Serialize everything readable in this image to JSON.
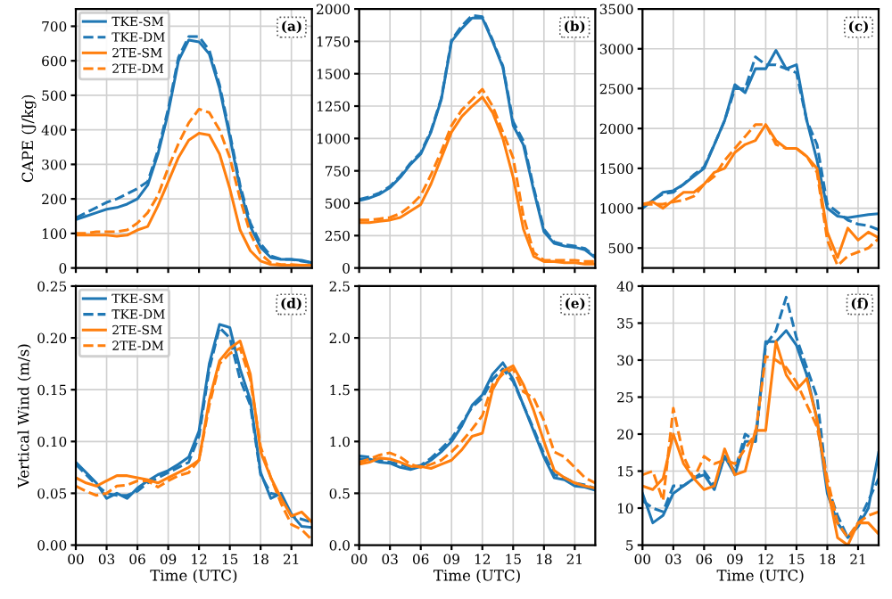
{
  "chart_data": [
    {
      "type": "line",
      "ylabel": "CAPE (J/kg)",
      "annotations": [
        "(a)"
      ],
      "x": [
        0,
        1,
        2,
        3,
        4,
        5,
        6,
        7,
        8,
        9,
        10,
        11,
        12,
        13,
        14,
        15,
        16,
        17,
        18,
        19,
        20,
        21,
        22,
        23
      ],
      "xlim": [
        0,
        23
      ],
      "xticks": [
        {
          "value": 0,
          "label": null
        },
        {
          "value": 3,
          "label": null
        },
        {
          "value": 6,
          "label": null
        },
        {
          "value": 9,
          "label": null
        },
        {
          "value": 12,
          "label": null
        },
        {
          "value": 15,
          "label": null
        },
        {
          "value": 18,
          "label": null
        },
        {
          "value": 21,
          "label": null
        }
      ],
      "ylim": [
        0,
        750
      ],
      "yticks": [
        0,
        100,
        200,
        300,
        400,
        500,
        600,
        700
      ],
      "tick_labels": "y",
      "grid": true,
      "legend": "top left",
      "series": [
        {
          "name": "TKE-SM",
          "color": "#1f77b4",
          "line_style": "solid",
          "values": [
            140,
            150,
            160,
            170,
            175,
            185,
            200,
            240,
            330,
            450,
            600,
            660,
            655,
            620,
            520,
            380,
            230,
            120,
            60,
            30,
            25,
            25,
            22,
            15
          ]
        },
        {
          "name": "TKE-DM",
          "color": "#1f77b4",
          "line_style": "dashed",
          "values": [
            145,
            160,
            175,
            190,
            200,
            215,
            230,
            250,
            340,
            460,
            610,
            670,
            670,
            630,
            530,
            390,
            240,
            130,
            70,
            35,
            25,
            25,
            20,
            15
          ]
        },
        {
          "name": "2TE-SM",
          "color": "#ff7f0e",
          "line_style": "solid",
          "values": [
            95,
            95,
            95,
            95,
            92,
            95,
            110,
            120,
            180,
            250,
            320,
            370,
            390,
            385,
            330,
            230,
            110,
            50,
            20,
            10,
            8,
            8,
            8,
            8
          ]
        },
        {
          "name": "2TE-DM",
          "color": "#ff7f0e",
          "line_style": "dashed",
          "values": [
            100,
            100,
            105,
            105,
            105,
            110,
            130,
            160,
            210,
            290,
            360,
            420,
            460,
            450,
            400,
            320,
            200,
            100,
            40,
            15,
            10,
            10,
            8,
            8
          ]
        }
      ]
    },
    {
      "type": "line",
      "annotations": [
        "(b)"
      ],
      "x": [
        0,
        1,
        2,
        3,
        4,
        5,
        6,
        7,
        8,
        9,
        10,
        11,
        12,
        13,
        14,
        15,
        16,
        17,
        18,
        19,
        20,
        21,
        22,
        23
      ],
      "xlim": [
        0,
        23
      ],
      "xticks": [
        {
          "value": 0,
          "label": null
        },
        {
          "value": 3,
          "label": null
        },
        {
          "value": 6,
          "label": null
        },
        {
          "value": 9,
          "label": null
        },
        {
          "value": 12,
          "label": null
        },
        {
          "value": 15,
          "label": null
        },
        {
          "value": 18,
          "label": null
        },
        {
          "value": 21,
          "label": null
        }
      ],
      "ylim": [
        0,
        2000
      ],
      "yticks": [
        0,
        250,
        500,
        750,
        1000,
        1250,
        1500,
        1750,
        2000
      ],
      "tick_labels": "y",
      "grid": true,
      "series": [
        {
          "color": "#1f77b4",
          "line_style": "solid",
          "values": [
            520,
            540,
            570,
            620,
            700,
            800,
            880,
            1050,
            1300,
            1750,
            1850,
            1930,
            1930,
            1750,
            1550,
            1100,
            950,
            600,
            280,
            190,
            170,
            160,
            140,
            80
          ]
        },
        {
          "color": "#1f77b4",
          "line_style": "dashed",
          "values": [
            530,
            550,
            580,
            630,
            710,
            810,
            890,
            1060,
            1310,
            1760,
            1870,
            1950,
            1940,
            1760,
            1560,
            1130,
            980,
            620,
            300,
            200,
            180,
            170,
            150,
            90
          ]
        },
        {
          "color": "#ff7f0e",
          "line_style": "solid",
          "values": [
            350,
            350,
            360,
            370,
            390,
            440,
            490,
            650,
            850,
            1050,
            1170,
            1250,
            1320,
            1200,
            1000,
            700,
            300,
            90,
            50,
            50,
            40,
            40,
            30,
            30
          ]
        },
        {
          "color": "#ff7f0e",
          "line_style": "dashed",
          "values": [
            370,
            370,
            380,
            390,
            420,
            480,
            560,
            720,
            900,
            1100,
            1220,
            1300,
            1380,
            1250,
            1050,
            850,
            400,
            120,
            60,
            60,
            60,
            60,
            50,
            50
          ]
        }
      ]
    },
    {
      "type": "line",
      "annotations": [
        "(c)"
      ],
      "x": [
        0,
        1,
        2,
        3,
        4,
        5,
        6,
        7,
        8,
        9,
        10,
        11,
        12,
        13,
        14,
        15,
        16,
        17,
        18,
        19,
        20,
        21,
        22,
        23
      ],
      "xlim": [
        0,
        23
      ],
      "xticks": [
        {
          "value": 0,
          "label": null
        },
        {
          "value": 3,
          "label": null
        },
        {
          "value": 6,
          "label": null
        },
        {
          "value": 9,
          "label": null
        },
        {
          "value": 12,
          "label": null
        },
        {
          "value": 15,
          "label": null
        },
        {
          "value": 18,
          "label": null
        },
        {
          "value": 21,
          "label": null
        }
      ],
      "ylim": [
        250,
        3500
      ],
      "yticks": [
        500,
        1000,
        1500,
        2000,
        2500,
        3000,
        3500
      ],
      "tick_labels": "y",
      "grid": true,
      "series": [
        {
          "color": "#1f77b4",
          "line_style": "solid",
          "values": [
            1000,
            1100,
            1200,
            1220,
            1300,
            1400,
            1500,
            1800,
            2100,
            2550,
            2450,
            2750,
            2750,
            2980,
            2750,
            2800,
            2100,
            1600,
            1000,
            900,
            880,
            900,
            920,
            930
          ]
        },
        {
          "color": "#1f77b4",
          "line_style": "dashed",
          "values": [
            1000,
            1100,
            1180,
            1200,
            1300,
            1420,
            1520,
            1800,
            2100,
            2500,
            2500,
            2900,
            2800,
            2800,
            2750,
            2700,
            2100,
            1800,
            1050,
            950,
            850,
            800,
            780,
            730
          ]
        },
        {
          "color": "#ff7f0e",
          "line_style": "solid",
          "values": [
            1050,
            1080,
            1000,
            1100,
            1200,
            1200,
            1300,
            1450,
            1500,
            1700,
            1800,
            1850,
            2050,
            1850,
            1750,
            1750,
            1650,
            1500,
            700,
            380,
            750,
            600,
            700,
            630
          ]
        },
        {
          "color": "#ff7f0e",
          "line_style": "dashed",
          "values": [
            1050,
            1050,
            1050,
            1080,
            1100,
            1150,
            1300,
            1400,
            1600,
            1750,
            1900,
            2050,
            2050,
            1800,
            1750,
            1750,
            1650,
            1450,
            600,
            280,
            400,
            450,
            500,
            620
          ]
        }
      ]
    },
    {
      "type": "line",
      "ylabel": "Vertical Wind (m/s)",
      "xlabel": "Time (UTC)",
      "annotations": [
        "(d)"
      ],
      "x": [
        0,
        1,
        2,
        3,
        4,
        5,
        6,
        7,
        8,
        9,
        10,
        11,
        12,
        13,
        14,
        15,
        16,
        17,
        18,
        19,
        20,
        21,
        22,
        23
      ],
      "xlim": [
        0,
        23
      ],
      "xticks": [
        {
          "value": 0,
          "label": "00"
        },
        {
          "value": 3,
          "label": "03"
        },
        {
          "value": 6,
          "label": "06"
        },
        {
          "value": 9,
          "label": "09"
        },
        {
          "value": 12,
          "label": "12"
        },
        {
          "value": 15,
          "label": "15"
        },
        {
          "value": 18,
          "label": "18"
        },
        {
          "value": 21,
          "label": "21"
        }
      ],
      "ylim": [
        0,
        0.25
      ],
      "yticks": [
        {
          "value": 0,
          "label": "0.00"
        },
        0.05,
        {
          "value": 0.1,
          "label": "0.10"
        },
        0.15,
        {
          "value": 0.2,
          "label": "0.20"
        },
        0.25
      ],
      "grid": true,
      "legend": "top left",
      "series": [
        {
          "name": "TKE-SM",
          "color": "#1f77b4",
          "line_style": "solid",
          "values": [
            0.08,
            0.07,
            0.06,
            0.045,
            0.05,
            0.045,
            0.055,
            0.062,
            0.068,
            0.072,
            0.078,
            0.085,
            0.11,
            0.175,
            0.213,
            0.21,
            0.17,
            0.14,
            0.07,
            0.045,
            0.05,
            0.03,
            0.018,
            0.017
          ]
        },
        {
          "name": "TKE-DM",
          "color": "#1f77b4",
          "line_style": "dashed",
          "values": [
            0.078,
            0.068,
            0.058,
            0.05,
            0.048,
            0.048,
            0.052,
            0.06,
            0.065,
            0.07,
            0.075,
            0.08,
            0.105,
            0.17,
            0.21,
            0.2,
            0.16,
            0.135,
            0.068,
            0.05,
            0.048,
            0.028,
            0.025,
            0.022
          ]
        },
        {
          "name": "2TE-SM",
          "color": "#ff7f0e",
          "line_style": "solid",
          "values": [
            0.065,
            0.06,
            0.057,
            0.062,
            0.067,
            0.067,
            0.065,
            0.063,
            0.06,
            0.065,
            0.07,
            0.075,
            0.082,
            0.14,
            0.178,
            0.19,
            0.197,
            0.165,
            0.09,
            0.065,
            0.045,
            0.028,
            0.032,
            0.022
          ]
        },
        {
          "name": "2TE-DM",
          "color": "#ff7f0e",
          "line_style": "dashed",
          "values": [
            0.057,
            0.052,
            0.048,
            0.05,
            0.057,
            0.058,
            0.062,
            0.062,
            0.056,
            0.062,
            0.067,
            0.07,
            0.082,
            0.135,
            0.175,
            0.185,
            0.19,
            0.16,
            0.095,
            0.065,
            0.04,
            0.02,
            0.015,
            0.005
          ]
        }
      ]
    },
    {
      "type": "line",
      "xlabel": "Time (UTC)",
      "annotations": [
        "(e)"
      ],
      "x": [
        0,
        1,
        2,
        3,
        4,
        5,
        6,
        7,
        8,
        9,
        10,
        11,
        12,
        13,
        14,
        15,
        16,
        17,
        18,
        19,
        20,
        21,
        22,
        23
      ],
      "xlim": [
        0,
        23
      ],
      "xticks": [
        {
          "value": 0,
          "label": "00"
        },
        {
          "value": 3,
          "label": "03"
        },
        {
          "value": 6,
          "label": "06"
        },
        {
          "value": 9,
          "label": "09"
        },
        {
          "value": 12,
          "label": "12"
        },
        {
          "value": 15,
          "label": "15"
        },
        {
          "value": 18,
          "label": "18"
        },
        {
          "value": 21,
          "label": "21"
        }
      ],
      "ylim": [
        0,
        2.5
      ],
      "yticks": [
        {
          "value": 0,
          "label": "0.0"
        },
        0.5,
        {
          "value": 1,
          "label": "1.0"
        },
        1.5,
        {
          "value": 2,
          "label": "2.0"
        },
        2.5
      ],
      "grid": true,
      "series": [
        {
          "color": "#1f77b4",
          "line_style": "solid",
          "values": [
            0.83,
            0.83,
            0.8,
            0.79,
            0.75,
            0.73,
            0.76,
            0.82,
            0.9,
            1.0,
            1.15,
            1.35,
            1.45,
            1.65,
            1.76,
            1.6,
            1.35,
            1.1,
            0.85,
            0.65,
            0.63,
            0.57,
            0.56,
            0.53
          ]
        },
        {
          "color": "#1f77b4",
          "line_style": "dashed",
          "values": [
            0.86,
            0.85,
            0.82,
            0.8,
            0.78,
            0.75,
            0.77,
            0.84,
            0.93,
            1.03,
            1.18,
            1.33,
            1.42,
            1.6,
            1.7,
            1.58,
            1.35,
            1.12,
            0.88,
            0.68,
            0.65,
            0.6,
            0.58,
            0.55
          ]
        },
        {
          "color": "#ff7f0e",
          "line_style": "solid",
          "values": [
            0.78,
            0.8,
            0.84,
            0.83,
            0.8,
            0.76,
            0.76,
            0.74,
            0.78,
            0.82,
            0.92,
            1.05,
            1.08,
            1.5,
            1.68,
            1.73,
            1.55,
            1.3,
            1.0,
            0.72,
            0.65,
            0.6,
            0.57,
            0.55
          ]
        },
        {
          "color": "#ff7f0e",
          "line_style": "dashed",
          "values": [
            0.8,
            0.83,
            0.87,
            0.89,
            0.85,
            0.78,
            0.75,
            0.78,
            0.82,
            0.9,
            1.0,
            1.12,
            1.25,
            1.55,
            1.65,
            1.7,
            1.48,
            1.42,
            1.2,
            0.9,
            0.85,
            0.75,
            0.65,
            0.6
          ]
        }
      ]
    },
    {
      "type": "line",
      "xlabel": "Time (UTC)",
      "annotations": [
        "(f)"
      ],
      "x": [
        0,
        1,
        2,
        3,
        4,
        5,
        6,
        7,
        8,
        9,
        10,
        11,
        12,
        13,
        14,
        15,
        16,
        17,
        18,
        19,
        20,
        21,
        22,
        23
      ],
      "xlim": [
        0,
        23
      ],
      "xticks": [
        {
          "value": 0,
          "label": "00"
        },
        {
          "value": 3,
          "label": "03"
        },
        {
          "value": 6,
          "label": "06"
        },
        {
          "value": 9,
          "label": "09"
        },
        {
          "value": 12,
          "label": "12"
        },
        {
          "value": 15,
          "label": "15"
        },
        {
          "value": 18,
          "label": "18"
        },
        {
          "value": 21,
          "label": "21"
        }
      ],
      "ylim": [
        5,
        40
      ],
      "yticks": [
        5,
        10,
        15,
        20,
        25,
        30,
        35,
        40
      ],
      "grid": true,
      "series": [
        {
          "color": "#1f77b4",
          "line_style": "solid",
          "values": [
            12,
            8,
            9,
            12,
            13,
            14,
            14.5,
            12.5,
            17,
            14.5,
            19,
            19,
            32.5,
            32.5,
            34,
            32,
            28,
            22,
            12,
            8,
            6,
            7.5,
            10,
            17.5
          ]
        },
        {
          "color": "#1f77b4",
          "line_style": "dashed",
          "values": [
            11,
            10,
            9.5,
            13,
            13,
            14,
            15,
            13,
            17,
            15,
            20,
            19,
            32,
            34,
            38.5,
            33,
            29,
            25,
            13,
            9,
            6,
            8,
            11,
            14
          ]
        },
        {
          "color": "#ff7f0e",
          "line_style": "solid",
          "values": [
            13,
            12.5,
            14,
            20,
            16,
            14,
            12.5,
            13,
            18,
            14.5,
            15,
            20.5,
            20.5,
            32.5,
            28,
            26,
            27.5,
            22,
            13,
            6,
            5,
            8,
            8,
            6.5
          ]
        },
        {
          "color": "#ff7f0e",
          "line_style": "dashed",
          "values": [
            14.5,
            15,
            11,
            23.5,
            17,
            14,
            17,
            16,
            16.5,
            16,
            18,
            20,
            30.5,
            30,
            29,
            27,
            24,
            21,
            14,
            8,
            6,
            8,
            9,
            9.5
          ]
        }
      ]
    }
  ]
}
